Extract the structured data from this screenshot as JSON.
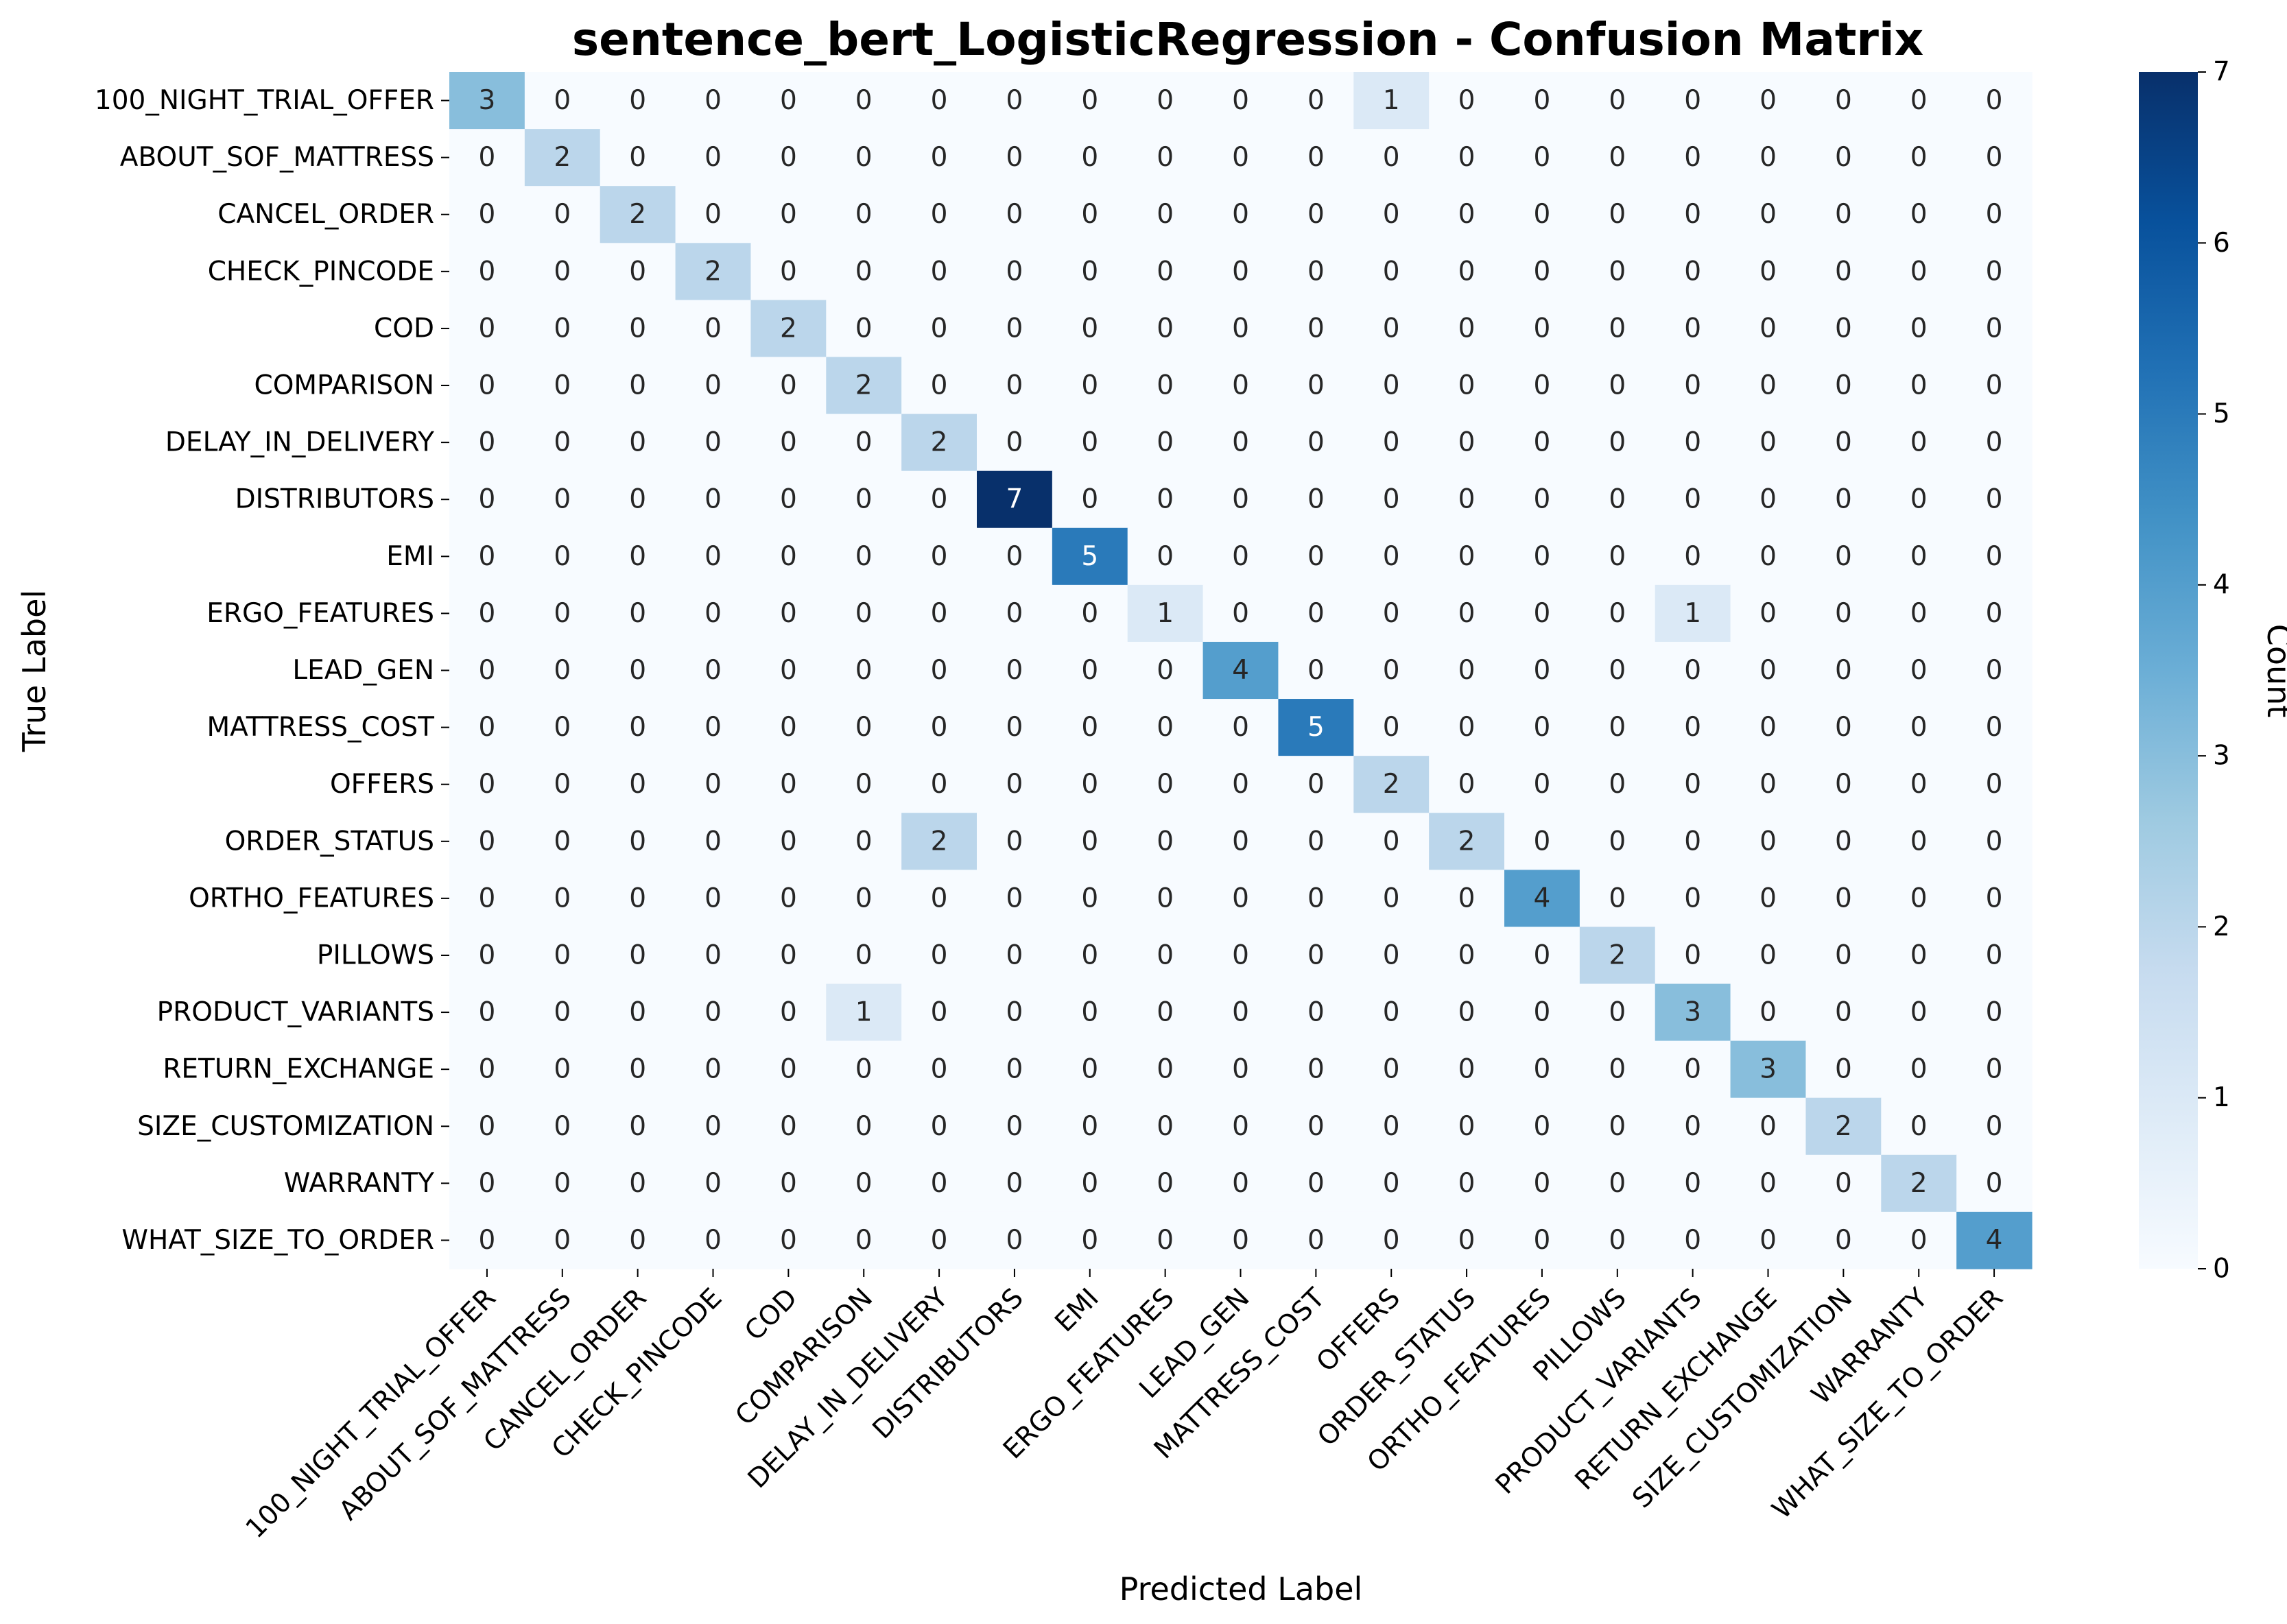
{
  "chart_data": {
    "type": "heatmap",
    "title": "sentence_bert_LogisticRegression - Confusion Matrix",
    "xlabel": "Predicted Label",
    "ylabel": "True Label",
    "colorbar_label": "Count",
    "colorbar_ticks": [
      "0",
      "1",
      "2",
      "3",
      "4",
      "5",
      "6",
      "7"
    ],
    "vmin": 0,
    "vmax": 7,
    "colormap": "Blues",
    "labels": [
      "100_NIGHT_TRIAL_OFFER",
      "ABOUT_SOF_MATTRESS",
      "CANCEL_ORDER",
      "CHECK_PINCODE",
      "COD",
      "COMPARISON",
      "DELAY_IN_DELIVERY",
      "DISTRIBUTORS",
      "EMI",
      "ERGO_FEATURES",
      "LEAD_GEN",
      "MATTRESS_COST",
      "OFFERS",
      "ORDER_STATUS",
      "ORTHO_FEATURES",
      "PILLOWS",
      "PRODUCT_VARIANTS",
      "RETURN_EXCHANGE",
      "SIZE_CUSTOMIZATION",
      "WARRANTY",
      "WHAT_SIZE_TO_ORDER"
    ],
    "matrix": [
      [
        3,
        0,
        0,
        0,
        0,
        0,
        0,
        0,
        0,
        0,
        0,
        0,
        1,
        0,
        0,
        0,
        0,
        0,
        0,
        0,
        0
      ],
      [
        0,
        2,
        0,
        0,
        0,
        0,
        0,
        0,
        0,
        0,
        0,
        0,
        0,
        0,
        0,
        0,
        0,
        0,
        0,
        0,
        0
      ],
      [
        0,
        0,
        2,
        0,
        0,
        0,
        0,
        0,
        0,
        0,
        0,
        0,
        0,
        0,
        0,
        0,
        0,
        0,
        0,
        0,
        0
      ],
      [
        0,
        0,
        0,
        2,
        0,
        0,
        0,
        0,
        0,
        0,
        0,
        0,
        0,
        0,
        0,
        0,
        0,
        0,
        0,
        0,
        0
      ],
      [
        0,
        0,
        0,
        0,
        2,
        0,
        0,
        0,
        0,
        0,
        0,
        0,
        0,
        0,
        0,
        0,
        0,
        0,
        0,
        0,
        0
      ],
      [
        0,
        0,
        0,
        0,
        0,
        2,
        0,
        0,
        0,
        0,
        0,
        0,
        0,
        0,
        0,
        0,
        0,
        0,
        0,
        0,
        0
      ],
      [
        0,
        0,
        0,
        0,
        0,
        0,
        2,
        0,
        0,
        0,
        0,
        0,
        0,
        0,
        0,
        0,
        0,
        0,
        0,
        0,
        0
      ],
      [
        0,
        0,
        0,
        0,
        0,
        0,
        0,
        7,
        0,
        0,
        0,
        0,
        0,
        0,
        0,
        0,
        0,
        0,
        0,
        0,
        0
      ],
      [
        0,
        0,
        0,
        0,
        0,
        0,
        0,
        0,
        5,
        0,
        0,
        0,
        0,
        0,
        0,
        0,
        0,
        0,
        0,
        0,
        0
      ],
      [
        0,
        0,
        0,
        0,
        0,
        0,
        0,
        0,
        0,
        1,
        0,
        0,
        0,
        0,
        0,
        0,
        1,
        0,
        0,
        0,
        0
      ],
      [
        0,
        0,
        0,
        0,
        0,
        0,
        0,
        0,
        0,
        0,
        4,
        0,
        0,
        0,
        0,
        0,
        0,
        0,
        0,
        0,
        0
      ],
      [
        0,
        0,
        0,
        0,
        0,
        0,
        0,
        0,
        0,
        0,
        0,
        5,
        0,
        0,
        0,
        0,
        0,
        0,
        0,
        0,
        0
      ],
      [
        0,
        0,
        0,
        0,
        0,
        0,
        0,
        0,
        0,
        0,
        0,
        0,
        2,
        0,
        0,
        0,
        0,
        0,
        0,
        0,
        0
      ],
      [
        0,
        0,
        0,
        0,
        0,
        0,
        2,
        0,
        0,
        0,
        0,
        0,
        0,
        2,
        0,
        0,
        0,
        0,
        0,
        0,
        0
      ],
      [
        0,
        0,
        0,
        0,
        0,
        0,
        0,
        0,
        0,
        0,
        0,
        0,
        0,
        0,
        4,
        0,
        0,
        0,
        0,
        0,
        0
      ],
      [
        0,
        0,
        0,
        0,
        0,
        0,
        0,
        0,
        0,
        0,
        0,
        0,
        0,
        0,
        0,
        2,
        0,
        0,
        0,
        0,
        0
      ],
      [
        0,
        0,
        0,
        0,
        0,
        1,
        0,
        0,
        0,
        0,
        0,
        0,
        0,
        0,
        0,
        0,
        3,
        0,
        0,
        0,
        0
      ],
      [
        0,
        0,
        0,
        0,
        0,
        0,
        0,
        0,
        0,
        0,
        0,
        0,
        0,
        0,
        0,
        0,
        0,
        3,
        0,
        0,
        0
      ],
      [
        0,
        0,
        0,
        0,
        0,
        0,
        0,
        0,
        0,
        0,
        0,
        0,
        0,
        0,
        0,
        0,
        0,
        0,
        2,
        0,
        0
      ],
      [
        0,
        0,
        0,
        0,
        0,
        0,
        0,
        0,
        0,
        0,
        0,
        0,
        0,
        0,
        0,
        0,
        0,
        0,
        0,
        2,
        0
      ],
      [
        0,
        0,
        0,
        0,
        0,
        0,
        0,
        0,
        0,
        0,
        0,
        0,
        0,
        0,
        0,
        0,
        0,
        0,
        0,
        0,
        4
      ]
    ]
  }
}
